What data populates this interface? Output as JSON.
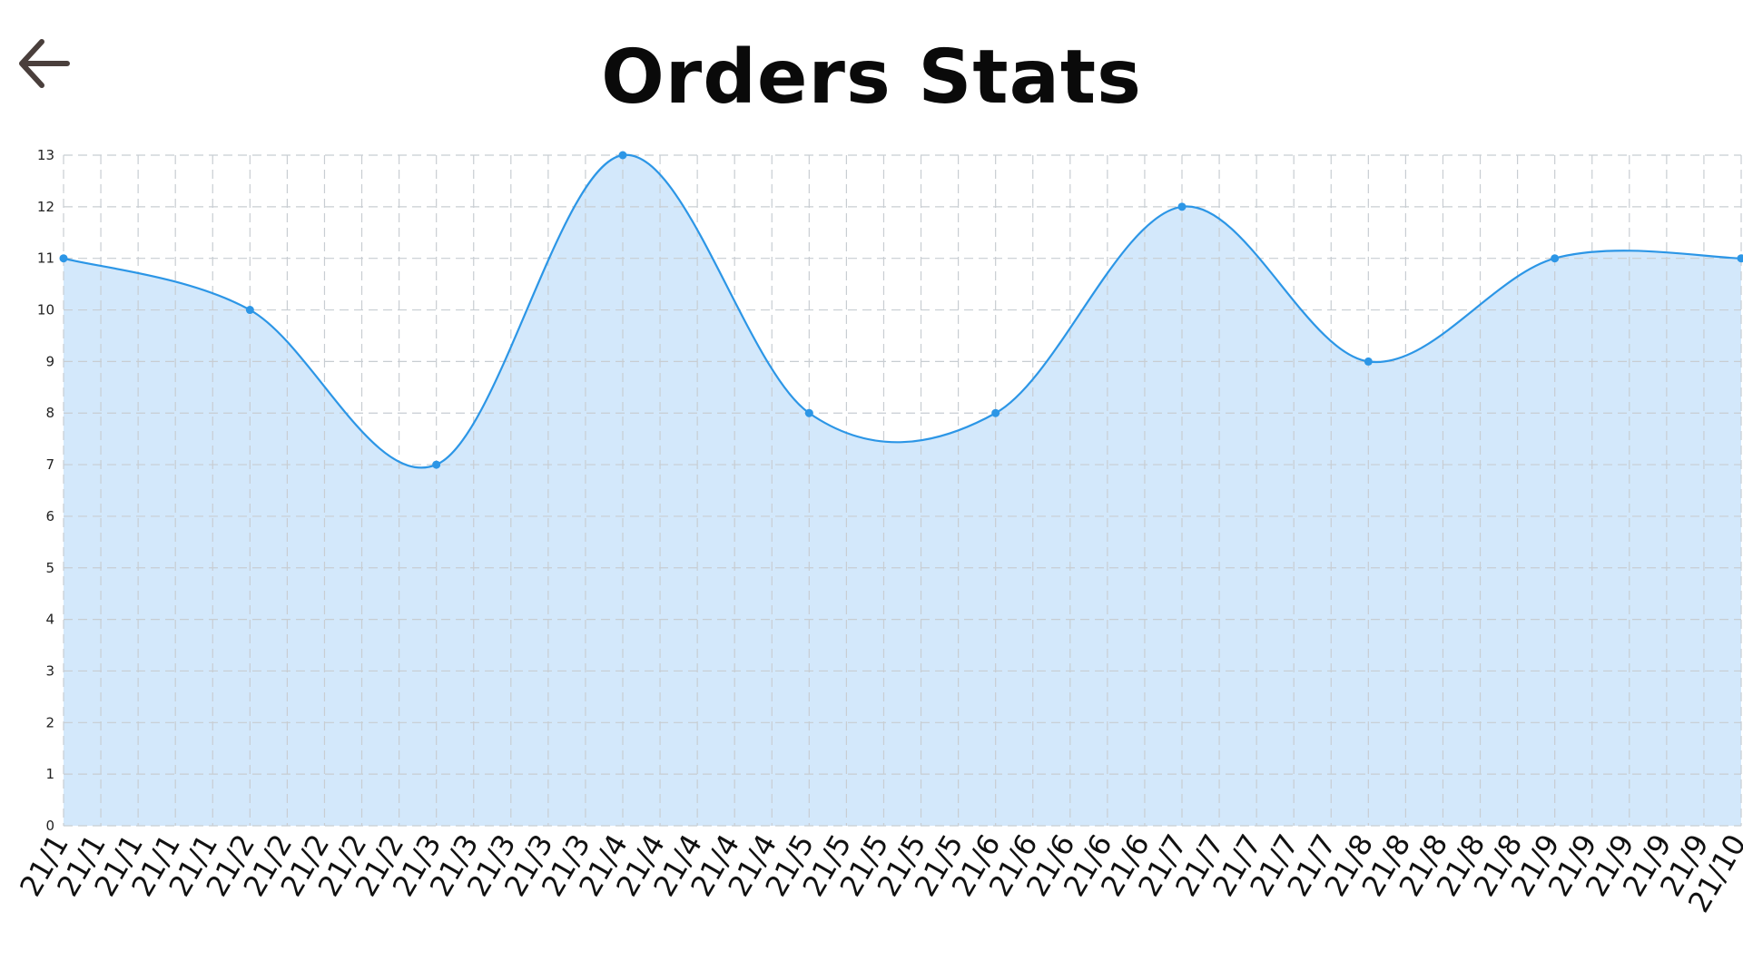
{
  "page": {
    "title": "Orders Stats",
    "back_icon": "arrow-left-icon"
  },
  "colors": {
    "line": "#2c96e6",
    "fill": "#d3e8fb",
    "grid": "#c8cdd2",
    "icon": "#4a3f3c"
  },
  "chart_data": {
    "type": "area",
    "title": "Orders Stats",
    "xlabel": "",
    "ylabel": "",
    "ylim": [
      0,
      13
    ],
    "yticks": [
      0,
      1,
      2,
      3,
      4,
      5,
      6,
      7,
      8,
      9,
      10,
      11,
      12,
      13
    ],
    "grid": true,
    "smooth": true,
    "categories": [
      "21/1",
      "21/1",
      "21/1",
      "21/1",
      "21/1",
      "21/2",
      "21/2",
      "21/2",
      "21/2",
      "21/2",
      "21/3",
      "21/3",
      "21/3",
      "21/3",
      "21/3",
      "21/4",
      "21/4",
      "21/4",
      "21/4",
      "21/4",
      "21/5",
      "21/5",
      "21/5",
      "21/5",
      "21/5",
      "21/6",
      "21/6",
      "21/6",
      "21/6",
      "21/6",
      "21/7",
      "21/7",
      "21/7",
      "21/7",
      "21/7",
      "21/8",
      "21/8",
      "21/8",
      "21/8",
      "21/8",
      "21/9",
      "21/9",
      "21/9",
      "21/9",
      "21/9",
      "21/10"
    ],
    "points": [
      {
        "index": 0,
        "value": 11
      },
      {
        "index": 5,
        "value": 10
      },
      {
        "index": 10,
        "value": 7
      },
      {
        "index": 15,
        "value": 13
      },
      {
        "index": 20,
        "value": 8
      },
      {
        "index": 25,
        "value": 8
      },
      {
        "index": 30,
        "value": 12
      },
      {
        "index": 35,
        "value": 9
      },
      {
        "index": 40,
        "value": 11
      },
      {
        "index": 45,
        "value": 11
      }
    ]
  }
}
